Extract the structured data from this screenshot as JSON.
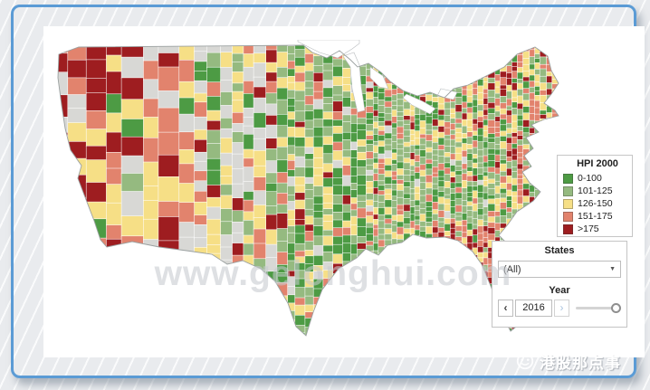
{
  "window": {
    "brand": "港股那点事",
    "watermark": "www.gelonghui.com"
  },
  "legend": {
    "title": "HPI 2000",
    "items": [
      {
        "label": "0-100",
        "color": "#4d9b44"
      },
      {
        "label": "101-125",
        "color": "#95ba80"
      },
      {
        "label": "126-150",
        "color": "#f6df86"
      },
      {
        "label": "151-175",
        "color": "#e2836d"
      },
      {
        "label": ">175",
        "color": "#9e1d20"
      }
    ]
  },
  "map": {
    "description": "US county choropleth of HPI 2000",
    "palette": {
      "green": "#4d9b44",
      "sage": "#95ba80",
      "yellow": "#f6df86",
      "salmon": "#e2836d",
      "red": "#9e1d20",
      "gray": "#d8d8d5"
    }
  },
  "filters": {
    "states_label": "States",
    "states_value": "(All)",
    "year_label": "Year",
    "year_value": "2016",
    "year_slider_position": 1
  },
  "icons": {
    "dropdown_caret": "▼",
    "prev_arrow": "‹",
    "next_arrow": "›"
  }
}
